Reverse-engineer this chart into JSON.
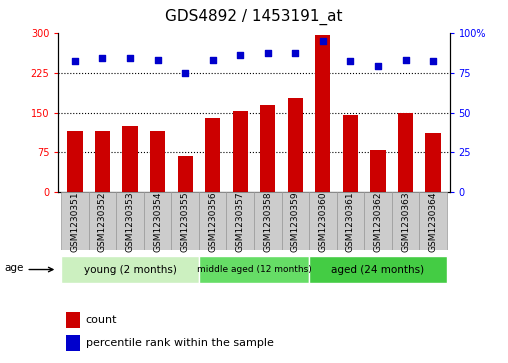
{
  "title": "GDS4892 / 1453191_at",
  "samples": [
    "GSM1230351",
    "GSM1230352",
    "GSM1230353",
    "GSM1230354",
    "GSM1230355",
    "GSM1230356",
    "GSM1230357",
    "GSM1230358",
    "GSM1230359",
    "GSM1230360",
    "GSM1230361",
    "GSM1230362",
    "GSM1230363",
    "GSM1230364"
  ],
  "counts": [
    115,
    115,
    125,
    115,
    68,
    140,
    152,
    165,
    178,
    295,
    145,
    80,
    150,
    112
  ],
  "percentiles": [
    82,
    84,
    84,
    83,
    75,
    83,
    86,
    87,
    87,
    95,
    82,
    79,
    83,
    82
  ],
  "left_yticks": [
    0,
    75,
    150,
    225,
    300
  ],
  "right_yticks": [
    0,
    25,
    50,
    75,
    100
  ],
  "ylim_left": [
    0,
    300
  ],
  "ylim_right": [
    0,
    100
  ],
  "bar_color": "#cc0000",
  "dot_color": "#0000cc",
  "dotted_lines": [
    75,
    150,
    225
  ],
  "groups": [
    {
      "label": "young (2 months)",
      "start": 0,
      "end": 5,
      "color": "#ccf0c0"
    },
    {
      "label": "middle aged (12 months)",
      "start": 5,
      "end": 9,
      "color": "#66dd66"
    },
    {
      "label": "aged (24 months)",
      "start": 9,
      "end": 14,
      "color": "#44cc44"
    }
  ],
  "sample_box_color": "#cccccc",
  "sample_box_edge": "#999999",
  "age_label": "age",
  "legend_count": "count",
  "legend_percentile": "percentile rank within the sample",
  "bar_color_legend": "#cc0000",
  "dot_color_legend": "#0000cc",
  "bar_width": 0.55,
  "title_fontsize": 11,
  "tick_fontsize": 7,
  "label_fontsize": 8,
  "sample_fontsize": 6.5
}
